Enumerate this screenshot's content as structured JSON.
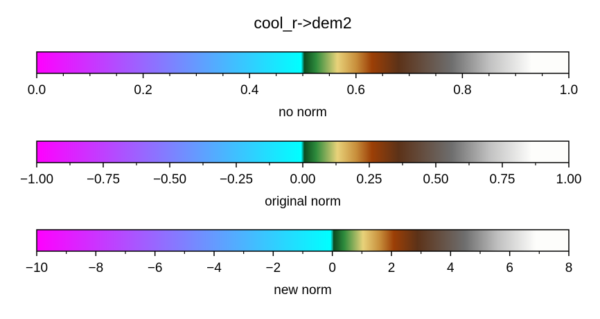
{
  "title": "cool_r->dem2",
  "chart_data": [
    {
      "type": "colorbar",
      "colormap": "cool_r->dem2",
      "xlabel": "no norm",
      "xlim": [
        0.0,
        1.0
      ],
      "center": 0.5,
      "ticks": [
        0.0,
        0.2,
        0.4,
        0.6,
        0.8,
        1.0
      ],
      "tick_labels": [
        "0.0",
        "0.2",
        "0.4",
        "0.6",
        "0.8",
        "1.0"
      ],
      "minor_ticks": [
        0.05,
        0.1,
        0.15,
        0.25,
        0.3,
        0.35,
        0.45,
        0.5,
        0.55,
        0.65,
        0.7,
        0.75,
        0.85,
        0.9,
        0.95
      ]
    },
    {
      "type": "colorbar",
      "colormap": "cool_r->dem2",
      "xlabel": "original norm",
      "xlim": [
        -1.0,
        1.0
      ],
      "center": 0.0,
      "ticks": [
        -1.0,
        -0.75,
        -0.5,
        -0.25,
        0.0,
        0.25,
        0.5,
        0.75,
        1.0
      ],
      "tick_labels": [
        "−1.00",
        "−0.75",
        "−0.50",
        "−0.25",
        "0.00",
        "0.25",
        "0.50",
        "0.75",
        "1.00"
      ],
      "minor_ticks": [
        -0.875,
        -0.625,
        -0.375,
        -0.125,
        0.125,
        0.375,
        0.625,
        0.875
      ]
    },
    {
      "type": "colorbar",
      "colormap": "cool_r->dem2",
      "xlabel": "new norm",
      "xlim": [
        -10,
        8
      ],
      "center": 0,
      "ticks": [
        -10,
        -8,
        -6,
        -4,
        -2,
        0,
        2,
        4,
        6,
        8
      ],
      "tick_labels": [
        "−10",
        "−8",
        "−6",
        "−4",
        "−2",
        "0",
        "2",
        "4",
        "6",
        "8"
      ],
      "minor_ticks": [
        -9,
        -7,
        -5,
        -3,
        -1,
        1,
        3,
        5,
        7
      ]
    }
  ],
  "colors": {
    "cool_start": "#ff00ff",
    "cool_end": "#00ffff",
    "dem_green_dark": "#0a4a1e",
    "dem_green": "#2e8b3c",
    "dem_yellow": "#e8d27a",
    "dem_tan": "#c88f3c",
    "dem_brown": "#9c3f06",
    "dem_dark_brown": "#5c3218",
    "dem_gray": "#6e6e6e",
    "dem_light_gray": "#c0c0c0",
    "dem_white": "#fdfdfb"
  }
}
